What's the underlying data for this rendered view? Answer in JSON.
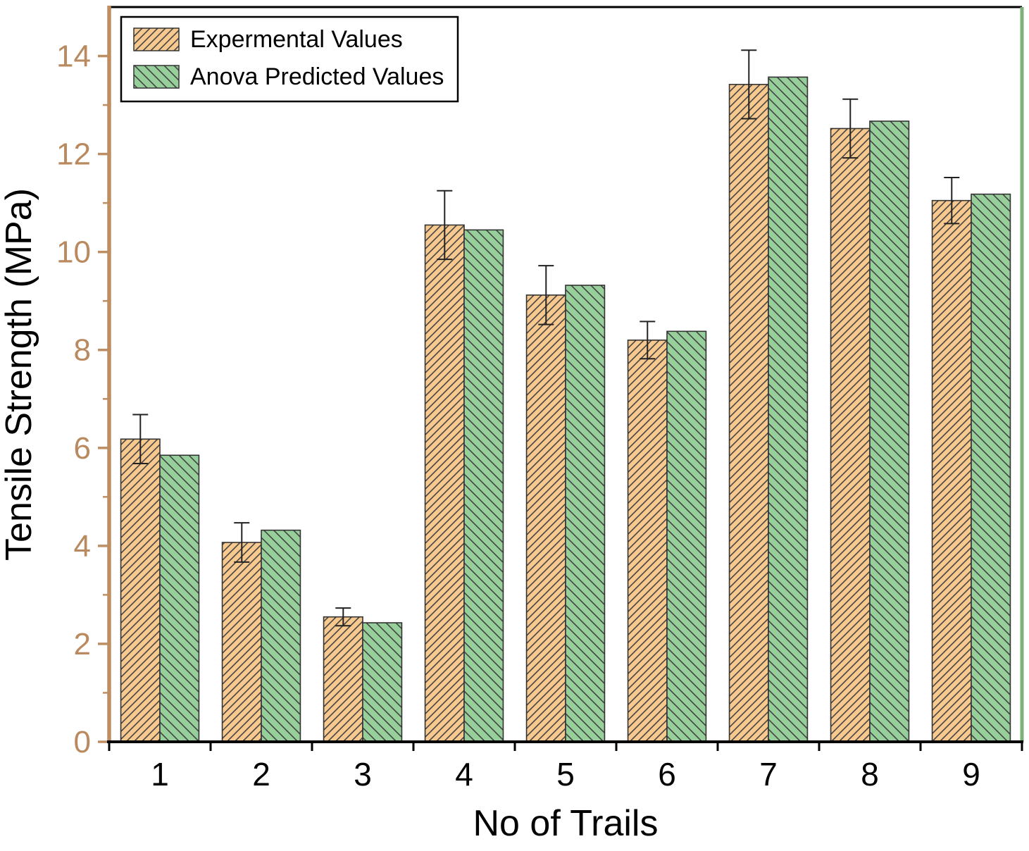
{
  "chart_data": {
    "type": "bar",
    "title": "",
    "xlabel": "No of  Trails",
    "ylabel": "Tensile Strength (MPa)",
    "categories": [
      "1",
      "2",
      "3",
      "4",
      "5",
      "6",
      "7",
      "8",
      "9"
    ],
    "series": [
      {
        "name": "Expermental Values",
        "color": "#F8C98F",
        "hatch": "/",
        "values": [
          6.18,
          4.07,
          2.55,
          10.55,
          9.12,
          8.2,
          13.42,
          12.52,
          11.05
        ],
        "errors": [
          0.5,
          0.4,
          0.18,
          0.7,
          0.6,
          0.38,
          0.7,
          0.6,
          0.47
        ]
      },
      {
        "name": "Anova Predicted Values",
        "color": "#97CF9B",
        "hatch": "\\",
        "values": [
          5.85,
          4.32,
          2.43,
          10.45,
          9.32,
          8.38,
          13.57,
          12.67,
          11.18
        ]
      }
    ],
    "ylim": [
      0,
      15
    ],
    "yticks": [
      0,
      2,
      4,
      6,
      8,
      10,
      12,
      14
    ],
    "legend_position": "top-left",
    "grid": false,
    "axis_colors": {
      "left": "#BE8E63",
      "bottom": "#000000",
      "right": "#7EB07C",
      "top": "#000000",
      "y_tick_label": "#B98A5F",
      "x_tick_label": "#000000"
    }
  }
}
